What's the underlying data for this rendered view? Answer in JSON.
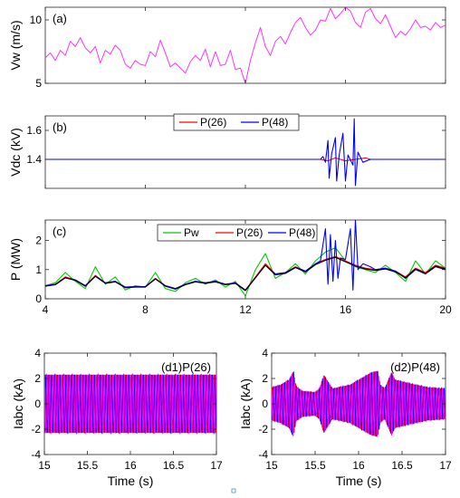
{
  "chart_data": [
    {
      "panel": "(a)",
      "type": "line",
      "ylabel": "Vw (m/s)",
      "xlim": [
        4,
        20
      ],
      "ylim": [
        5,
        11
      ],
      "yticks": [
        5,
        10
      ],
      "yticklabels": [
        "5",
        "10"
      ],
      "xticks": [
        4,
        8,
        12,
        16,
        20
      ],
      "show_xticklabels": false,
      "colors": {
        "wind": "#ff33ff"
      },
      "series": [
        {
          "color_key": "wind",
          "x": [
            4.0,
            4.2,
            4.4,
            4.6,
            4.8,
            5.0,
            5.2,
            5.4,
            5.6,
            5.8,
            6.0,
            6.2,
            6.4,
            6.6,
            6.8,
            7.0,
            7.2,
            7.4,
            7.6,
            7.8,
            8.0,
            8.2,
            8.4,
            8.6,
            8.8,
            9.0,
            9.2,
            9.4,
            9.6,
            9.8,
            10.0,
            10.2,
            10.4,
            10.6,
            10.8,
            11.0,
            11.2,
            11.4,
            11.6,
            11.8,
            11.9,
            12.0,
            12.2,
            12.4,
            12.6,
            12.8,
            13.0,
            13.2,
            13.4,
            13.6,
            13.8,
            14.0,
            14.2,
            14.4,
            14.6,
            14.8,
            15.0,
            15.2,
            15.4,
            15.6,
            15.8,
            16.0,
            16.2,
            16.4,
            16.6,
            16.8,
            17.0,
            17.2,
            17.4,
            17.6,
            17.8,
            18.0,
            18.2,
            18.4,
            18.6,
            18.8,
            19.0,
            19.2,
            19.4,
            19.6,
            19.8,
            20.0
          ],
          "y": [
            7.0,
            7.4,
            6.8,
            7.6,
            7.2,
            8.3,
            7.9,
            8.6,
            7.8,
            7.4,
            7.9,
            6.6,
            7.6,
            7.3,
            8.0,
            7.6,
            6.5,
            6.2,
            6.8,
            6.5,
            6.4,
            7.5,
            7.1,
            8.4,
            7.4,
            6.3,
            6.6,
            6.2,
            5.8,
            6.7,
            7.2,
            6.8,
            7.7,
            6.3,
            7.5,
            6.4,
            6.5,
            7.6,
            6.1,
            6.2,
            5.6,
            5.0,
            6.8,
            8.2,
            9.4,
            7.9,
            7.2,
            8.3,
            8.7,
            8.1,
            9.0,
            9.8,
            10.2,
            9.4,
            8.8,
            9.2,
            10.0,
            9.9,
            10.9,
            10.1,
            10.5,
            11.0,
            10.7,
            9.8,
            9.4,
            10.6,
            10.9,
            10.1,
            9.7,
            10.4,
            9.5,
            8.6,
            9.1,
            8.8,
            9.3,
            10.0,
            9.4,
            9.5,
            9.2,
            9.8,
            9.4,
            9.6
          ]
        }
      ]
    },
    {
      "panel": "(b)",
      "type": "line",
      "ylabel": "Vdc (kV)",
      "xlim": [
        4,
        20
      ],
      "ylim": [
        1.2,
        1.7
      ],
      "yticks": [
        1.4,
        1.6
      ],
      "yticklabels": [
        "1.4",
        "1.6"
      ],
      "xticks": [
        4,
        8,
        12,
        16,
        20
      ],
      "show_xticklabels": false,
      "legend_position": "top-center",
      "colors": {
        "p26": "#ff0000",
        "p48": "#0000ff"
      },
      "series": [
        {
          "name": "P(26)",
          "color_key": "p26",
          "x": [
            4,
            5,
            6,
            7,
            8,
            9,
            10,
            11,
            12,
            13,
            14,
            15,
            15.3,
            15.6,
            16.0,
            16.4,
            16.8,
            17,
            18,
            19,
            20
          ],
          "y": [
            1.4,
            1.4,
            1.4,
            1.4,
            1.4,
            1.4,
            1.4,
            1.4,
            1.4,
            1.4,
            1.4,
            1.4,
            1.39,
            1.41,
            1.39,
            1.4,
            1.41,
            1.4,
            1.4,
            1.4,
            1.4
          ]
        },
        {
          "name": "P(48)",
          "color_key": "p48",
          "x": [
            4,
            5,
            6,
            7,
            8,
            9,
            10,
            11,
            12,
            13,
            14,
            15.0,
            15.1,
            15.2,
            15.3,
            15.35,
            15.45,
            15.6,
            15.65,
            15.75,
            15.9,
            16.0,
            16.1,
            16.3,
            16.35,
            16.4,
            16.5,
            16.7,
            17,
            18,
            19,
            20
          ],
          "y": [
            1.4,
            1.4,
            1.4,
            1.4,
            1.4,
            1.4,
            1.4,
            1.4,
            1.4,
            1.4,
            1.4,
            1.4,
            1.42,
            1.38,
            1.53,
            1.27,
            1.44,
            1.55,
            1.25,
            1.43,
            1.58,
            1.25,
            1.43,
            1.36,
            1.68,
            1.22,
            1.45,
            1.38,
            1.4,
            1.4,
            1.4,
            1.4
          ]
        }
      ]
    },
    {
      "panel": "(c)",
      "type": "line",
      "ylabel": "P (MW)",
      "xlim": [
        4,
        20
      ],
      "ylim": [
        0,
        2.7
      ],
      "yticks": [
        0,
        1,
        2
      ],
      "yticklabels": [
        "0",
        "1",
        "2"
      ],
      "xticks": [
        4,
        8,
        12,
        16,
        20
      ],
      "xticklabels": [
        "4",
        "8",
        "12",
        "16",
        "20"
      ],
      "show_xticklabels": true,
      "legend_position": "top-center",
      "colors": {
        "pw": "#00cc00",
        "p26": "#ff0000",
        "p48": "#0000ff",
        "ref": "#000000"
      },
      "series": [
        {
          "name": "Pw",
          "color_key": "pw",
          "x": [
            4.0,
            4.4,
            4.8,
            5.2,
            5.6,
            6.0,
            6.4,
            6.8,
            7.2,
            7.6,
            8.0,
            8.4,
            8.8,
            9.2,
            9.6,
            10.0,
            10.4,
            10.8,
            11.2,
            11.6,
            12.0,
            12.4,
            12.8,
            13.2,
            13.6,
            14.0,
            14.4,
            14.8,
            15.2,
            15.6,
            16.0,
            16.4,
            16.8,
            17.2,
            17.6,
            18.0,
            18.4,
            18.8,
            19.2,
            19.6,
            20.0
          ],
          "y": [
            0.45,
            0.55,
            0.9,
            0.6,
            0.35,
            1.1,
            0.5,
            0.75,
            0.3,
            0.45,
            0.4,
            0.9,
            0.35,
            0.25,
            0.55,
            0.7,
            0.5,
            0.65,
            0.4,
            0.6,
            0.1,
            1.0,
            1.55,
            0.7,
            0.9,
            1.2,
            0.85,
            1.3,
            1.6,
            1.75,
            1.3,
            1.1,
            1.0,
            0.9,
            1.15,
            0.9,
            0.6,
            1.3,
            0.85,
            1.3,
            1.05
          ]
        },
        {
          "name": "P(26)",
          "color_key": "p26",
          "x": [
            4.0,
            4.4,
            4.8,
            5.2,
            5.6,
            6.0,
            6.4,
            6.8,
            7.2,
            7.6,
            8.0,
            8.4,
            8.8,
            9.2,
            9.6,
            10.0,
            10.4,
            10.8,
            11.2,
            11.6,
            12.0,
            12.4,
            12.8,
            13.2,
            13.6,
            14.0,
            14.4,
            14.8,
            15.2,
            15.6,
            16.0,
            16.4,
            16.8,
            17.2,
            17.6,
            18.0,
            18.4,
            18.8,
            19.2,
            19.6,
            20.0
          ],
          "y": [
            0.45,
            0.5,
            0.75,
            0.65,
            0.45,
            0.8,
            0.55,
            0.6,
            0.4,
            0.42,
            0.42,
            0.7,
            0.45,
            0.35,
            0.5,
            0.6,
            0.55,
            0.6,
            0.5,
            0.55,
            0.3,
            0.75,
            1.2,
            0.85,
            0.9,
            1.1,
            0.95,
            1.2,
            1.35,
            1.45,
            1.3,
            1.15,
            1.05,
            1.0,
            1.05,
            0.95,
            0.75,
            1.05,
            0.9,
            1.15,
            1.05
          ]
        },
        {
          "name": "P(48)",
          "color_key": "p48",
          "x": [
            4.0,
            4.4,
            4.8,
            5.2,
            5.6,
            6.0,
            6.4,
            6.8,
            7.2,
            7.6,
            8.0,
            8.4,
            8.8,
            9.2,
            9.6,
            10.0,
            10.4,
            10.8,
            11.2,
            11.6,
            12.0,
            12.4,
            12.8,
            13.2,
            13.6,
            14.0,
            14.4,
            14.8,
            15.0,
            15.2,
            15.3,
            15.4,
            15.5,
            15.6,
            15.7,
            15.8,
            16.0,
            16.2,
            16.3,
            16.4,
            16.5,
            16.7,
            17.0,
            17.2,
            17.6,
            18.0,
            18.4,
            18.8,
            19.2,
            19.6,
            20.0
          ],
          "y": [
            0.45,
            0.5,
            0.72,
            0.65,
            0.45,
            0.78,
            0.55,
            0.6,
            0.4,
            0.42,
            0.42,
            0.68,
            0.45,
            0.35,
            0.5,
            0.6,
            0.55,
            0.6,
            0.5,
            0.55,
            0.3,
            0.72,
            1.15,
            0.85,
            0.9,
            1.08,
            0.95,
            1.2,
            1.3,
            2.4,
            0.5,
            2.2,
            0.6,
            2.0,
            0.7,
            1.4,
            1.35,
            2.4,
            0.3,
            2.7,
            1.0,
            1.2,
            1.1,
            1.0,
            1.05,
            0.95,
            0.7,
            1.0,
            0.85,
            1.1,
            1.0
          ]
        },
        {
          "color_key": "ref",
          "x": [
            4.0,
            4.4,
            4.8,
            5.2,
            5.6,
            6.0,
            6.4,
            6.8,
            7.2,
            7.6,
            8.0,
            8.4,
            8.8,
            9.2,
            9.6,
            10.0,
            10.4,
            10.8,
            11.2,
            11.6,
            12.0,
            12.4,
            12.8,
            13.2,
            13.6,
            14.0,
            14.4,
            14.8,
            15.2,
            15.6,
            16.0,
            16.4,
            16.8,
            17.2,
            17.6,
            18.0,
            18.4,
            18.8,
            19.2,
            19.6,
            20.0
          ],
          "y": [
            0.43,
            0.48,
            0.72,
            0.63,
            0.43,
            0.77,
            0.53,
            0.58,
            0.38,
            0.4,
            0.4,
            0.68,
            0.43,
            0.33,
            0.48,
            0.58,
            0.53,
            0.58,
            0.48,
            0.53,
            0.28,
            0.72,
            1.15,
            0.82,
            0.87,
            1.07,
            0.92,
            1.17,
            1.32,
            1.42,
            1.27,
            1.12,
            1.02,
            0.97,
            1.02,
            0.92,
            0.72,
            1.02,
            0.87,
            1.12,
            1.02
          ]
        }
      ]
    },
    {
      "panel": "(d1)",
      "type": "line",
      "annotation": "(d1)P(26)",
      "xlabel": "Time (s)",
      "ylabel": "Iabc (kA)",
      "xlim": [
        15,
        17
      ],
      "ylim": [
        -4,
        4
      ],
      "yticks": [
        -4,
        -2,
        0,
        2,
        4
      ],
      "yticklabels": [
        "-4",
        "-2",
        "0",
        "2",
        "4"
      ],
      "xticks": [
        15,
        15.5,
        16,
        16.5,
        17
      ],
      "xticklabels": [
        "15",
        "15.5",
        "16",
        "16.5",
        "17"
      ],
      "waveform": {
        "kind": "three-phase",
        "frequency_hz": 30,
        "amplitude_ka": 2.3,
        "phase_colors": [
          "#ff0000",
          "#0000ff",
          "#ff00ff"
        ]
      }
    },
    {
      "panel": "(d2)",
      "type": "line",
      "annotation": "(d2)P(48)",
      "xlabel": "Time (s)",
      "ylabel": "Iabc (kA)",
      "xlim": [
        15,
        17
      ],
      "ylim": [
        -4,
        4
      ],
      "yticks": [
        -4,
        -2,
        0,
        2,
        4
      ],
      "yticklabels": [
        "-4",
        "-2",
        "0",
        "2",
        "4"
      ],
      "xticks": [
        15,
        15.5,
        16,
        16.5,
        17
      ],
      "xticklabels": [
        "15",
        "15.5",
        "16",
        "16.5",
        "17"
      ],
      "waveform": {
        "kind": "three-phase",
        "frequency_hz": 30,
        "phase_colors": [
          "#ff0000",
          "#0000ff",
          "#ff00ff"
        ],
        "envelope_t": [
          15.0,
          15.1,
          15.2,
          15.25,
          15.28,
          15.35,
          15.5,
          15.55,
          15.6,
          15.7,
          15.9,
          16.0,
          16.15,
          16.22,
          16.25,
          16.3,
          16.36,
          16.38,
          16.42,
          16.6,
          16.8,
          17.0
        ],
        "envelope_ka": [
          1.3,
          1.5,
          1.9,
          2.6,
          1.4,
          1.0,
          0.9,
          1.2,
          2.3,
          1.2,
          1.5,
          1.9,
          2.5,
          2.6,
          1.5,
          1.2,
          2.2,
          2.5,
          1.9,
          1.6,
          1.3,
          1.2
        ]
      }
    }
  ],
  "marker_color": "#4d8fd9"
}
